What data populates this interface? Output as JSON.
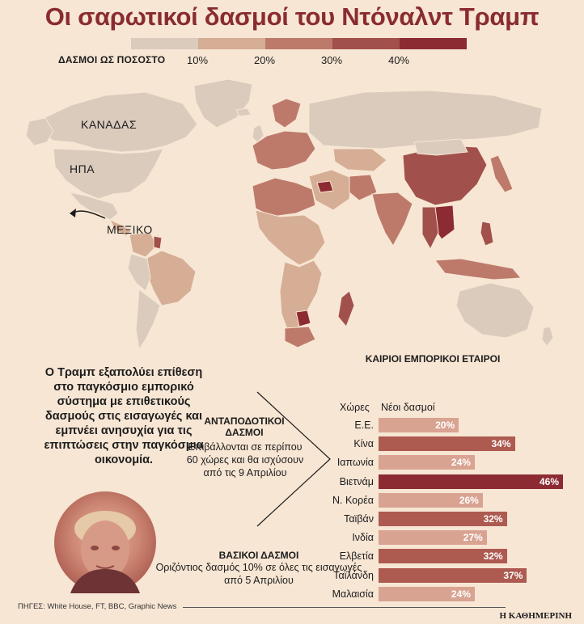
{
  "title": "Οι σαρωτικοί δασμοί του Ντόναλντ Τραμπ",
  "legend": {
    "label": "ΔΑΣΜΟΙ ΩΣ ΠΟΣΟΣΤΟ",
    "ticks": [
      "10%",
      "20%",
      "30%",
      "40%"
    ],
    "colors": [
      "#dacbbd",
      "#d6ad95",
      "#bd7a6b",
      "#a1504b",
      "#8c2b32"
    ]
  },
  "map_labels": {
    "canada": "ΚΑΝΑΔΑΣ",
    "usa": "ΗΠΑ",
    "mexico": "ΜΕΞΙΚΟ"
  },
  "lead_text": "Ο Τραμπ εξαπολύει επίθεση στο παγκόσμιο εμπορικό σύστημα με επιθετικούς δασμούς στις εισαγωγές και εμπνέει ανησυχία για τις επιπτώσεις στην παγκόσμια οικονομία.",
  "retaliatory": {
    "title": "ΑΝΤΑΠΟΔΟΤΙΚΟΙ ΔΑΣΜΟΙ",
    "body": "Επιβάλλονται σε περίπου 60 χώρες και θα ισχύσουν από τις 9 Απριλίου"
  },
  "baseline": {
    "title": "ΒΑΣΙΚΟΙ ΔΑΣΜΟΙ",
    "body": "Οριζόντιος δασμός 10% σε όλες τις εισαγωγές από 5 Απριλίου"
  },
  "source": "ΠΗΓΕΣ: White House, FT, BBC, Graphic News",
  "publisher": "Η ΚΑΘΗΜΕΡΙΝΗ",
  "chart_data": {
    "type": "bar",
    "title": "ΚΑΙΡΙΟΙ ΕΜΠΟΡΙΚΟΙ ΕΤΑΙΡΟΙ",
    "column_headers": [
      "Χώρες",
      "Νέοι δασμοί"
    ],
    "categories": [
      "Ε.Ε.",
      "Κίνα",
      "Ιαπωνία",
      "Βιετνάμ",
      "Ν. Κορέα",
      "Ταϊβάν",
      "Ινδία",
      "Ελβετία",
      "Ταϊλάνδη",
      "Μαλαισία"
    ],
    "values": [
      20,
      34,
      24,
      46,
      26,
      32,
      27,
      32,
      37,
      24
    ],
    "value_labels": [
      "20%",
      "34%",
      "24%",
      "46%",
      "26%",
      "32%",
      "27%",
      "32%",
      "37%",
      "24%"
    ],
    "xlim": [
      0,
      46
    ],
    "colors": [
      "#d9a391",
      "#ad5a50",
      "#d9a391",
      "#8c2b32",
      "#d9a391",
      "#ad5a50",
      "#d9a391",
      "#ad5a50",
      "#ad5a50",
      "#d9a391"
    ]
  }
}
